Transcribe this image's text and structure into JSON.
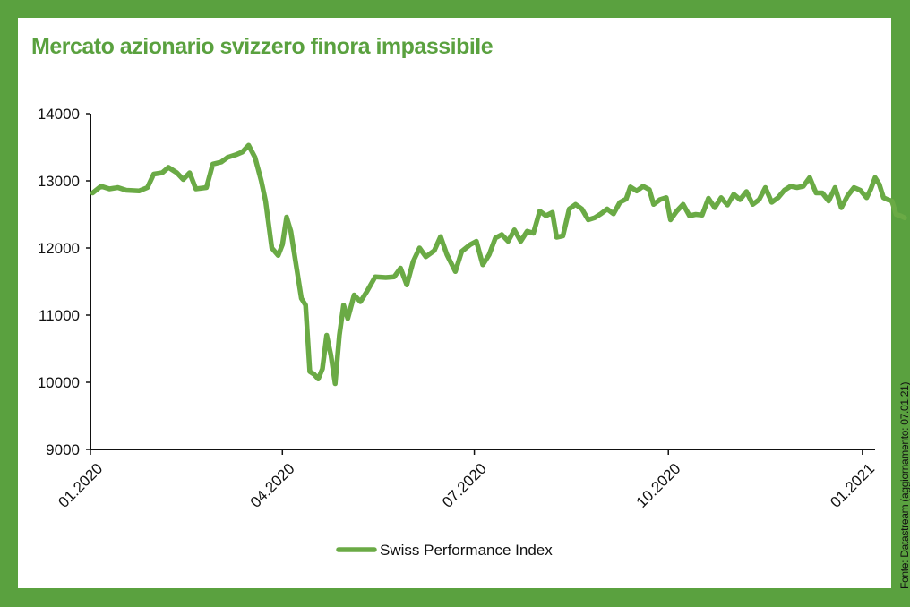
{
  "chart_data": {
    "type": "line",
    "title": "Mercato azionario svizzero finora impassibile",
    "source": "Fonte: Datastream (aggiornamento: 07.01.21)",
    "ylim": [
      9000,
      14000
    ],
    "y_ticks": [
      "14000",
      "13000",
      "12000",
      "11000",
      "10000",
      "9000"
    ],
    "x_range": [
      "2020-01-01",
      "2021-01-07"
    ],
    "x_ticks": [
      {
        "label": "01.2020",
        "date": "2020-01-01"
      },
      {
        "label": "04.2020",
        "date": "2020-04-01"
      },
      {
        "label": "07.2020",
        "date": "2020-07-01"
      },
      {
        "label": "10.2020",
        "date": "2020-10-01"
      },
      {
        "label": "01.2021",
        "date": "2021-01-01"
      }
    ],
    "grid": false,
    "legend_position": "bottom-center",
    "series": [
      {
        "name": "Swiss Performance Index",
        "color": "#6aaa45",
        "points": [
          [
            "2020-01-02",
            12820
          ],
          [
            "2020-01-06",
            12920
          ],
          [
            "2020-01-10",
            12880
          ],
          [
            "2020-01-14",
            12900
          ],
          [
            "2020-01-18",
            12860
          ],
          [
            "2020-01-24",
            12850
          ],
          [
            "2020-01-28",
            12900
          ],
          [
            "2020-01-31",
            13100
          ],
          [
            "2020-02-04",
            13120
          ],
          [
            "2020-02-07",
            13200
          ],
          [
            "2020-02-11",
            13120
          ],
          [
            "2020-02-14",
            13020
          ],
          [
            "2020-02-17",
            13120
          ],
          [
            "2020-02-20",
            12880
          ],
          [
            "2020-02-25",
            12900
          ],
          [
            "2020-02-28",
            13250
          ],
          [
            "2020-03-03",
            13280
          ],
          [
            "2020-03-06",
            13350
          ],
          [
            "2020-03-10",
            13390
          ],
          [
            "2020-03-13",
            13430
          ],
          [
            "2020-03-16",
            13530
          ],
          [
            "2020-03-19",
            13350
          ],
          [
            "2020-03-22",
            13000
          ],
          [
            "2020-03-24",
            12700
          ],
          [
            "2020-03-27",
            12000
          ],
          [
            "2020-03-30",
            11890
          ],
          [
            "2020-04-01",
            12050
          ],
          [
            "2020-04-03",
            12460
          ],
          [
            "2020-04-05",
            12250
          ],
          [
            "2020-04-07",
            11850
          ],
          [
            "2020-04-10",
            11250
          ],
          [
            "2020-04-12",
            11150
          ],
          [
            "2020-04-14",
            10160
          ],
          [
            "2020-04-16",
            10120
          ],
          [
            "2020-04-18",
            10050
          ],
          [
            "2020-04-20",
            10200
          ],
          [
            "2020-04-22",
            10700
          ],
          [
            "2020-04-24",
            10400
          ],
          [
            "2020-04-26",
            9980
          ],
          [
            "2020-04-28",
            10700
          ],
          [
            "2020-04-30",
            11150
          ],
          [
            "2020-05-02",
            10950
          ],
          [
            "2020-05-05",
            11300
          ],
          [
            "2020-05-08",
            11200
          ],
          [
            "2020-05-11",
            11350
          ],
          [
            "2020-05-15",
            11570
          ],
          [
            "2020-05-20",
            11560
          ],
          [
            "2020-05-24",
            11570
          ],
          [
            "2020-05-27",
            11700
          ],
          [
            "2020-05-30",
            11450
          ],
          [
            "2020-06-02",
            11800
          ],
          [
            "2020-06-05",
            12000
          ],
          [
            "2020-06-08",
            11870
          ],
          [
            "2020-06-12",
            11960
          ],
          [
            "2020-06-15",
            12170
          ],
          [
            "2020-06-18",
            11900
          ],
          [
            "2020-06-22",
            11650
          ],
          [
            "2020-06-25",
            11950
          ],
          [
            "2020-06-29",
            12050
          ],
          [
            "2020-07-02",
            12100
          ],
          [
            "2020-07-05",
            11750
          ],
          [
            "2020-07-08",
            11900
          ],
          [
            "2020-07-11",
            12150
          ],
          [
            "2020-07-14",
            12200
          ],
          [
            "2020-07-17",
            12100
          ],
          [
            "2020-07-20",
            12270
          ],
          [
            "2020-07-23",
            12100
          ],
          [
            "2020-07-26",
            12250
          ],
          [
            "2020-07-29",
            12220
          ],
          [
            "2020-08-01",
            12550
          ],
          [
            "2020-08-04",
            12480
          ],
          [
            "2020-08-07",
            12530
          ],
          [
            "2020-08-09",
            12160
          ],
          [
            "2020-08-12",
            12180
          ],
          [
            "2020-08-15",
            12580
          ],
          [
            "2020-08-18",
            12650
          ],
          [
            "2020-08-21",
            12580
          ],
          [
            "2020-08-24",
            12420
          ],
          [
            "2020-08-27",
            12450
          ],
          [
            "2020-08-30",
            12510
          ],
          [
            "2020-09-02",
            12580
          ],
          [
            "2020-09-05",
            12510
          ],
          [
            "2020-09-08",
            12680
          ],
          [
            "2020-09-11",
            12730
          ],
          [
            "2020-09-13",
            12910
          ],
          [
            "2020-09-16",
            12850
          ],
          [
            "2020-09-19",
            12920
          ],
          [
            "2020-09-22",
            12870
          ],
          [
            "2020-09-24",
            12650
          ],
          [
            "2020-09-27",
            12720
          ],
          [
            "2020-09-30",
            12750
          ],
          [
            "2020-10-02",
            12420
          ],
          [
            "2020-10-05",
            12550
          ],
          [
            "2020-10-08",
            12650
          ],
          [
            "2020-10-11",
            12480
          ],
          [
            "2020-10-14",
            12500
          ],
          [
            "2020-10-17",
            12490
          ],
          [
            "2020-10-20",
            12740
          ],
          [
            "2020-10-23",
            12600
          ],
          [
            "2020-10-26",
            12750
          ],
          [
            "2020-10-29",
            12640
          ],
          [
            "2020-11-01",
            12800
          ],
          [
            "2020-11-04",
            12720
          ],
          [
            "2020-11-07",
            12840
          ],
          [
            "2020-11-10",
            12650
          ],
          [
            "2020-11-13",
            12720
          ],
          [
            "2020-11-16",
            12900
          ],
          [
            "2020-11-19",
            12680
          ],
          [
            "2020-11-22",
            12750
          ],
          [
            "2020-11-25",
            12860
          ],
          [
            "2020-11-28",
            12920
          ],
          [
            "2020-12-01",
            12900
          ],
          [
            "2020-12-04",
            12920
          ],
          [
            "2020-12-07",
            13050
          ],
          [
            "2020-12-10",
            12820
          ],
          [
            "2020-12-13",
            12820
          ],
          [
            "2020-12-16",
            12700
          ],
          [
            "2020-12-19",
            12900
          ],
          [
            "2020-12-22",
            12600
          ],
          [
            "2020-12-25",
            12780
          ],
          [
            "2020-12-28",
            12900
          ],
          [
            "2020-12-31",
            12860
          ],
          [
            "2021-01-03",
            12750
          ],
          [
            "2021-01-05",
            12880
          ],
          [
            "2021-01-07",
            13050
          ],
          [
            "2021-01-09",
            12950
          ],
          [
            "2021-01-11",
            12750
          ],
          [
            "2021-01-13",
            12720
          ],
          [
            "2021-01-15",
            12700
          ],
          [
            "2021-01-17",
            12500
          ],
          [
            "2021-01-19",
            12480
          ],
          [
            "2021-01-21",
            12450
          ]
        ]
      }
    ]
  }
}
